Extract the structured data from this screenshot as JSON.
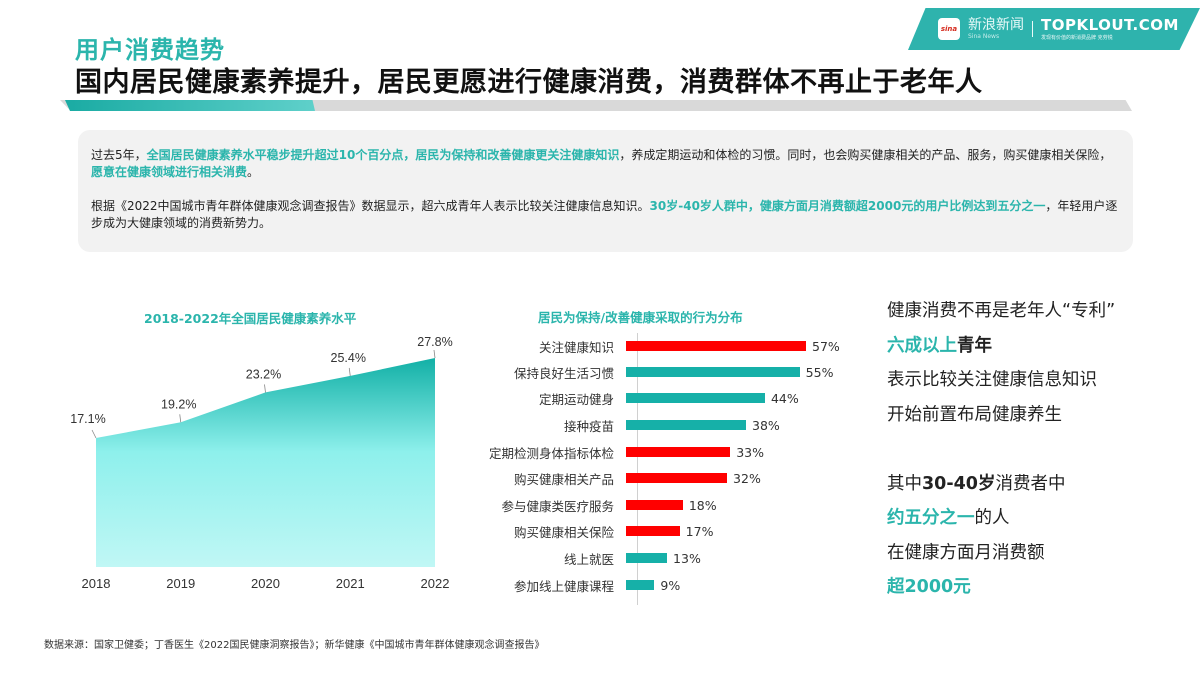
{
  "header": {
    "kicker": "用户消费趋势",
    "headline": "国内居民健康素养提升，居民更愿进行健康消费，消费群体不再止于老年人"
  },
  "logo": {
    "sina_icon": "sina",
    "sina_cn": "新浪新闻",
    "sina_en": "Sina News",
    "topklout": "TOPKLOUT.COM",
    "topklout_sub": "发现有价值的新消费品牌 克劳锐"
  },
  "summary": {
    "p1": {
      "a": "过去5年，",
      "b": "全国居民健康素养水平稳步提升超过10个百分点，居民为保持和改善健康更关注健康知识",
      "c": "，养成定期运动和体检的习惯。同时，也会购买健康相关的产品、服务，购买健康相关保险，",
      "d": "愿意在健康领域进行相关消费",
      "e": "。"
    },
    "p2": {
      "a": "根据《2022中国城市青年群体健康观念调查报告》数据显示，超六成青年人表示比较关注健康信息知识。",
      "b": "30岁-40岁人群中，健康方面月消费额超2000元的用户比例达到五分之一",
      "c": "，年轻用户逐步成为大健康领域的消费新势力。"
    }
  },
  "colors": {
    "teal": "#2bb5ac",
    "red": "#ff0000",
    "bar_teal": "#16b0a8"
  },
  "chart_data": [
    {
      "type": "area",
      "title": "2018-2022年全国居民健康素养水平",
      "categories": [
        "2018",
        "2019",
        "2020",
        "2021",
        "2022"
      ],
      "values": [
        17.1,
        19.2,
        23.2,
        25.4,
        27.8
      ],
      "labels": [
        "17.1%",
        "19.2%",
        "23.2%",
        "25.4%",
        "27.8%"
      ],
      "xlabel": "",
      "ylabel": "",
      "unit": "%",
      "grid": false,
      "legend": "none"
    },
    {
      "type": "bar",
      "orientation": "horizontal",
      "title": "居民为保持/改善健康采取的行为分布",
      "categories": [
        "关注健康知识",
        "保持良好生活习惯",
        "定期运动健身",
        "接种疫苗",
        "定期检测身体指标体检",
        "购买健康相关产品",
        "参与健康类医疗服务",
        "购买健康相关保险",
        "线上就医",
        "参加线上健康课程"
      ],
      "values": [
        57,
        55,
        44,
        38,
        33,
        32,
        18,
        17,
        13,
        9
      ],
      "labels": [
        "57%",
        "55%",
        "44%",
        "38%",
        "33%",
        "32%",
        "18%",
        "17%",
        "13%",
        "9%"
      ],
      "bar_colors": [
        "#ff0000",
        "#16b0a8",
        "#16b0a8",
        "#16b0a8",
        "#ff0000",
        "#ff0000",
        "#ff0000",
        "#ff0000",
        "#16b0a8",
        "#16b0a8"
      ],
      "unit": "%",
      "grid": false,
      "legend": "none"
    }
  ],
  "side": {
    "l1": "健康消费不再是老年人“专利”",
    "l2a": "六成以上",
    "l2b": "青年",
    "l3": "表示比较关注健康信息知识",
    "l4": "开始前置布局健康养生",
    "l5a": "其中",
    "l5b": "30-40岁",
    "l5c": "消费者中",
    "l6a": "约五分之一",
    "l6b": "的人",
    "l7": "在健康方面月消费额",
    "l8": "超2000元"
  },
  "source": "数据来源：国家卫健委；丁香医生《2022国民健康洞察报告》；新华健康《中国城市青年群体健康观念调查报告》"
}
